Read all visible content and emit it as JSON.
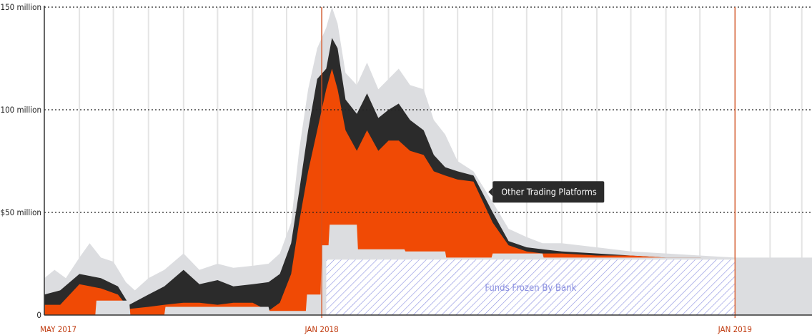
{
  "chart_data": {
    "type": "area",
    "title": "",
    "xlabel": "",
    "ylabel": "",
    "ylim": [
      0,
      150
    ],
    "y_unit": "USD million",
    "grid": "dotted horizontal at y ticks, light vertical month lines",
    "y_ticks": [
      {
        "value": 0,
        "label": "0"
      },
      {
        "value": 50,
        "label": "$50 million"
      },
      {
        "value": 100,
        "label": "$100 million"
      },
      {
        "value": 150,
        "label": "$150 million"
      }
    ],
    "x_ticks": [
      {
        "date": "2017-05",
        "label": "MAY 2017"
      },
      {
        "date": "2018-01",
        "label": "JAN 2018"
      },
      {
        "date": "2019-01",
        "label": "JAN 2019"
      }
    ],
    "x_range": [
      "2017-05-01",
      "2019-03-10"
    ],
    "reference_lines": [
      "2018-01-01",
      "2019-01-01"
    ],
    "colors": {
      "total": "#dcdde0",
      "dark_band": "#2b2b2b",
      "other_platforms": "#f04a05",
      "frozen_pattern": "#8a8fe0",
      "ref_line": "#d9501c",
      "axis": "#333333"
    },
    "series": [
      {
        "name": "",
        "layer": "total",
        "points": [
          [
            "2017-05-01",
            18
          ],
          [
            "2017-05-10",
            22
          ],
          [
            "2017-05-20",
            18
          ],
          [
            "2017-06-01",
            28
          ],
          [
            "2017-06-10",
            35
          ],
          [
            "2017-06-20",
            28
          ],
          [
            "2017-07-01",
            26
          ],
          [
            "2017-07-12",
            16
          ],
          [
            "2017-07-20",
            12
          ],
          [
            "2017-08-01",
            18
          ],
          [
            "2017-08-15",
            22
          ],
          [
            "2017-09-01",
            30
          ],
          [
            "2017-09-15",
            22
          ],
          [
            "2017-10-01",
            25
          ],
          [
            "2017-10-15",
            23
          ],
          [
            "2017-11-01",
            24
          ],
          [
            "2017-11-15",
            25
          ],
          [
            "2017-11-25",
            30
          ],
          [
            "2017-12-05",
            45
          ],
          [
            "2017-12-12",
            80
          ],
          [
            "2017-12-20",
            110
          ],
          [
            "2017-12-28",
            130
          ],
          [
            "2018-01-05",
            140
          ],
          [
            "2018-01-10",
            150
          ],
          [
            "2018-01-15",
            142
          ],
          [
            "2018-01-22",
            118
          ],
          [
            "2018-02-01",
            112
          ],
          [
            "2018-02-10",
            123
          ],
          [
            "2018-02-20",
            110
          ],
          [
            "2018-03-01",
            115
          ],
          [
            "2018-03-10",
            120
          ],
          [
            "2018-03-20",
            112
          ],
          [
            "2018-04-01",
            110
          ],
          [
            "2018-04-10",
            95
          ],
          [
            "2018-04-20",
            88
          ],
          [
            "2018-05-01",
            75
          ],
          [
            "2018-05-15",
            70
          ],
          [
            "2018-06-01",
            55
          ],
          [
            "2018-06-15",
            42
          ],
          [
            "2018-07-01",
            38
          ],
          [
            "2018-07-15",
            35
          ],
          [
            "2018-08-01",
            35
          ],
          [
            "2018-09-01",
            33
          ],
          [
            "2018-10-01",
            31
          ],
          [
            "2018-11-01",
            30
          ],
          [
            "2018-12-01",
            29
          ],
          [
            "2019-01-01",
            28
          ],
          [
            "2019-02-01",
            27
          ],
          [
            "2019-03-10",
            26
          ]
        ]
      },
      {
        "name": "",
        "layer": "dark_band",
        "points": [
          [
            "2017-05-01",
            10
          ],
          [
            "2017-05-15",
            12
          ],
          [
            "2017-06-01",
            20
          ],
          [
            "2017-06-20",
            18
          ],
          [
            "2017-07-05",
            14
          ],
          [
            "2017-07-15",
            5
          ],
          [
            "2017-08-01",
            10
          ],
          [
            "2017-08-15",
            14
          ],
          [
            "2017-09-01",
            22
          ],
          [
            "2017-09-15",
            15
          ],
          [
            "2017-10-01",
            17
          ],
          [
            "2017-10-15",
            14
          ],
          [
            "2017-11-01",
            15
          ],
          [
            "2017-11-15",
            16
          ],
          [
            "2017-11-25",
            20
          ],
          [
            "2017-12-05",
            35
          ],
          [
            "2017-12-12",
            60
          ],
          [
            "2017-12-20",
            90
          ],
          [
            "2017-12-28",
            115
          ],
          [
            "2018-01-05",
            120
          ],
          [
            "2018-01-10",
            135
          ],
          [
            "2018-01-15",
            130
          ],
          [
            "2018-01-22",
            105
          ],
          [
            "2018-02-01",
            98
          ],
          [
            "2018-02-10",
            108
          ],
          [
            "2018-02-20",
            96
          ],
          [
            "2018-03-01",
            100
          ],
          [
            "2018-03-10",
            103
          ],
          [
            "2018-03-20",
            95
          ],
          [
            "2018-04-01",
            90
          ],
          [
            "2018-04-10",
            78
          ],
          [
            "2018-04-20",
            72
          ],
          [
            "2018-05-01",
            70
          ],
          [
            "2018-05-15",
            68
          ],
          [
            "2018-06-01",
            50
          ],
          [
            "2018-06-15",
            36
          ],
          [
            "2018-07-01",
            33
          ],
          [
            "2018-07-15",
            32
          ],
          [
            "2018-08-01",
            31
          ],
          [
            "2018-09-01",
            30
          ],
          [
            "2018-10-01",
            29
          ],
          [
            "2018-11-01",
            28
          ],
          [
            "2018-12-01",
            28
          ],
          [
            "2019-01-01",
            27
          ],
          [
            "2019-02-01",
            26
          ],
          [
            "2019-03-10",
            26
          ]
        ]
      },
      {
        "name": "Other Trading Platforms",
        "layer": "other_platforms",
        "points": [
          [
            "2017-05-01",
            5
          ],
          [
            "2017-05-15",
            5
          ],
          [
            "2017-06-01",
            15
          ],
          [
            "2017-06-20",
            13
          ],
          [
            "2017-07-05",
            10
          ],
          [
            "2017-07-15",
            3
          ],
          [
            "2017-08-01",
            4
          ],
          [
            "2017-08-15",
            5
          ],
          [
            "2017-09-01",
            6
          ],
          [
            "2017-09-15",
            6
          ],
          [
            "2017-10-01",
            5
          ],
          [
            "2017-10-15",
            6
          ],
          [
            "2017-11-01",
            6
          ],
          [
            "2017-11-15",
            2
          ],
          [
            "2017-11-25",
            6
          ],
          [
            "2017-12-05",
            20
          ],
          [
            "2017-12-12",
            45
          ],
          [
            "2017-12-20",
            70
          ],
          [
            "2017-12-28",
            90
          ],
          [
            "2018-01-05",
            110
          ],
          [
            "2018-01-10",
            120
          ],
          [
            "2018-01-15",
            110
          ],
          [
            "2018-01-22",
            90
          ],
          [
            "2018-02-01",
            80
          ],
          [
            "2018-02-10",
            90
          ],
          [
            "2018-02-20",
            80
          ],
          [
            "2018-03-01",
            85
          ],
          [
            "2018-03-10",
            85
          ],
          [
            "2018-03-20",
            80
          ],
          [
            "2018-04-01",
            78
          ],
          [
            "2018-04-10",
            70
          ],
          [
            "2018-04-20",
            68
          ],
          [
            "2018-05-01",
            66
          ],
          [
            "2018-05-15",
            65
          ],
          [
            "2018-06-01",
            45
          ],
          [
            "2018-06-15",
            34
          ],
          [
            "2018-07-01",
            31
          ],
          [
            "2018-07-15",
            30
          ],
          [
            "2018-08-01",
            30
          ],
          [
            "2018-09-01",
            29
          ],
          [
            "2018-10-01",
            29
          ],
          [
            "2018-11-01",
            28
          ],
          [
            "2018-12-01",
            28
          ],
          [
            "2019-01-01",
            27
          ],
          [
            "2019-02-01",
            26
          ],
          [
            "2019-03-10",
            26
          ]
        ]
      },
      {
        "name": "",
        "layer": "lower_grey",
        "points": [
          [
            "2017-05-01",
            0
          ],
          [
            "2017-06-15",
            0
          ],
          [
            "2017-06-16",
            7
          ],
          [
            "2017-07-15",
            7
          ],
          [
            "2017-07-16",
            0
          ],
          [
            "2017-08-15",
            0
          ],
          [
            "2017-08-16",
            4
          ],
          [
            "2017-09-15",
            4
          ],
          [
            "2017-09-16",
            4
          ],
          [
            "2017-11-15",
            4
          ],
          [
            "2017-11-16",
            2
          ],
          [
            "2017-12-18",
            2
          ],
          [
            "2017-12-19",
            10
          ],
          [
            "2017-12-31",
            10
          ],
          [
            "2018-01-01",
            34
          ],
          [
            "2018-01-07",
            34
          ],
          [
            "2018-01-08",
            44
          ],
          [
            "2018-02-01",
            44
          ],
          [
            "2018-02-02",
            32
          ],
          [
            "2018-03-15",
            32
          ],
          [
            "2018-03-16",
            31
          ],
          [
            "2018-04-20",
            31
          ],
          [
            "2018-04-21",
            28
          ],
          [
            "2018-05-31",
            28
          ],
          [
            "2018-06-01",
            30
          ],
          [
            "2018-07-15",
            30
          ],
          [
            "2018-07-16",
            28
          ],
          [
            "2019-03-10",
            28
          ]
        ]
      }
    ],
    "annotations": [
      {
        "type": "label",
        "text": "Other Trading Platforms",
        "at_date": "2018-06-01",
        "at_value": 60
      },
      {
        "type": "hatched_region",
        "text": "Funds Frozen By Bank",
        "from_date": "2018-01-05",
        "to_date": "2019-01-01",
        "value": 27
      }
    ]
  }
}
